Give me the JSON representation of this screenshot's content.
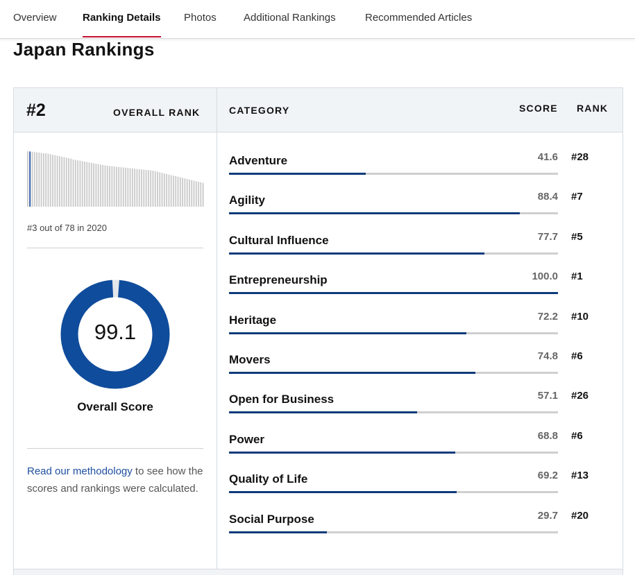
{
  "tabs": [
    {
      "label": "Overview"
    },
    {
      "label": "Ranking Details",
      "active": true
    },
    {
      "label": "Photos"
    },
    {
      "label": "Additional Rankings"
    },
    {
      "label": "Recommended Articles"
    }
  ],
  "page_title": "Japan Rankings",
  "summary": {
    "rank": "#2",
    "rank_label": "OVERALL RANK",
    "history_caption": "#3 out of 78 in 2020",
    "overall_score": "99.1",
    "overall_score_value": 99.1,
    "overall_score_label": "Overall Score",
    "methodology_link": "Read our methodology",
    "methodology_text": " to see how the scores and rankings were calculated."
  },
  "table_headers": {
    "category": "CATEGORY",
    "score": "SCORE",
    "rank": "RANK"
  },
  "categories": [
    {
      "name": "Adventure",
      "score": "41.6",
      "value": 41.6,
      "rank": "#28"
    },
    {
      "name": "Agility",
      "score": "88.4",
      "value": 88.4,
      "rank": "#7"
    },
    {
      "name": "Cultural Influence",
      "score": "77.7",
      "value": 77.7,
      "rank": "#5"
    },
    {
      "name": "Entrepreneurship",
      "score": "100.0",
      "value": 100.0,
      "rank": "#1"
    },
    {
      "name": "Heritage",
      "score": "72.2",
      "value": 72.2,
      "rank": "#10"
    },
    {
      "name": "Movers",
      "score": "74.8",
      "value": 74.8,
      "rank": "#6"
    },
    {
      "name": "Open for Business",
      "score": "57.1",
      "value": 57.1,
      "rank": "#26"
    },
    {
      "name": "Power",
      "score": "68.8",
      "value": 68.8,
      "rank": "#6"
    },
    {
      "name": "Quality of Life",
      "score": "69.2",
      "value": 69.2,
      "rank": "#13"
    },
    {
      "name": "Social Purpose",
      "score": "29.7",
      "value": 29.7,
      "rank": "#20"
    }
  ],
  "colors": {
    "accent_red": "#c8102e",
    "bar_fill": "#0c3a7a",
    "donut": "#0f4c9c",
    "link": "#1f4fa0"
  }
}
